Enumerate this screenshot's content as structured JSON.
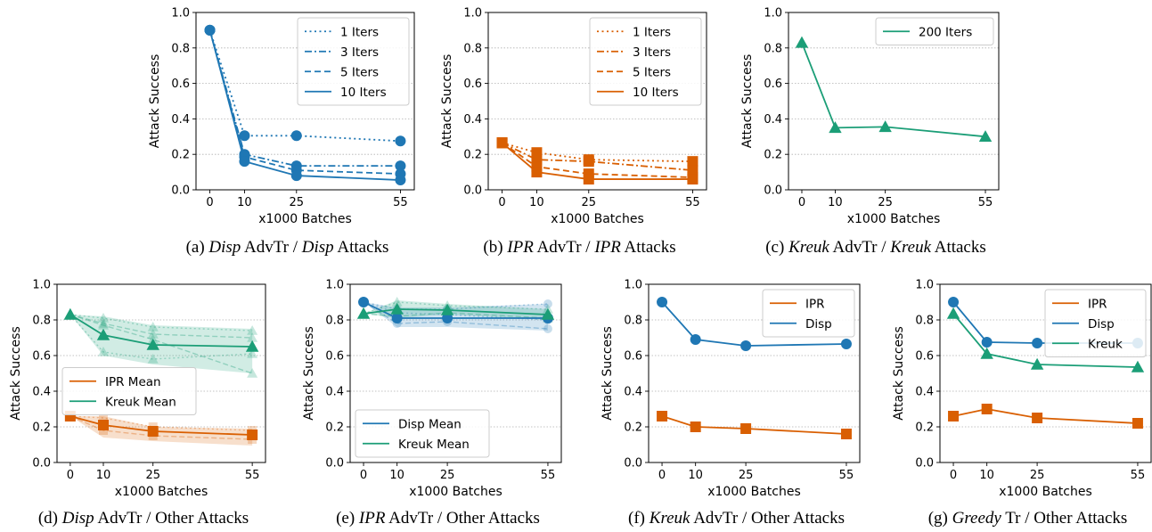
{
  "colors": {
    "Disp": "#1f77b4",
    "IPR": "#d95f02",
    "Kreuk": "#1b9e77"
  },
  "chart_data": [
    {
      "panel": "a",
      "type": "line",
      "caption": {
        "prefix": "(a) ",
        "parts": [
          {
            "t": "Disp",
            "i": true
          },
          {
            "t": " AdvTr / ",
            "i": false
          },
          {
            "t": "Disp",
            "i": true
          },
          {
            "t": " Attacks",
            "i": false
          }
        ]
      },
      "xlabel": "x1000 Batches",
      "ylabel": "Attack Success",
      "x": [
        0,
        10,
        25,
        55
      ],
      "xticks": [
        "0",
        "10",
        "25",
        "55"
      ],
      "ylim": [
        0,
        1
      ],
      "yticks": [
        "0.0",
        "0.2",
        "0.4",
        "0.6",
        "0.8",
        "1.0"
      ],
      "grid": true,
      "legend": "top-right",
      "series": [
        {
          "name": "1 Iters",
          "family": "Disp",
          "dash": "dotted",
          "marker": "circle",
          "values": [
            0.9,
            0.305,
            0.305,
            0.275
          ]
        },
        {
          "name": "3 Iters",
          "family": "Disp",
          "dash": "dashdot",
          "marker": "circle",
          "values": [
            0.9,
            0.2,
            0.135,
            0.135
          ]
        },
        {
          "name": "5 Iters",
          "family": "Disp",
          "dash": "dashed",
          "marker": "circle",
          "values": [
            0.9,
            0.185,
            0.11,
            0.09
          ]
        },
        {
          "name": "10 Iters",
          "family": "Disp",
          "dash": "solid",
          "marker": "circle",
          "values": [
            0.9,
            0.16,
            0.08,
            0.055
          ]
        }
      ]
    },
    {
      "panel": "b",
      "type": "line",
      "caption": {
        "prefix": "(b) ",
        "parts": [
          {
            "t": "IPR",
            "i": true
          },
          {
            "t": " AdvTr / ",
            "i": false
          },
          {
            "t": "IPR",
            "i": true
          },
          {
            "t": " Attacks",
            "i": false
          }
        ]
      },
      "xlabel": "x1000 Batches",
      "ylabel": "Attack Success",
      "x": [
        0,
        10,
        25,
        55
      ],
      "xticks": [
        "0",
        "10",
        "25",
        "55"
      ],
      "ylim": [
        0,
        1
      ],
      "yticks": [
        "0.0",
        "0.2",
        "0.4",
        "0.6",
        "0.8",
        "1.0"
      ],
      "grid": true,
      "legend": "top-right",
      "series": [
        {
          "name": "1 Iters",
          "family": "IPR",
          "dash": "dotted",
          "marker": "square",
          "values": [
            0.265,
            0.21,
            0.17,
            0.16
          ]
        },
        {
          "name": "3 Iters",
          "family": "IPR",
          "dash": "dashdot",
          "marker": "square",
          "values": [
            0.265,
            0.17,
            0.16,
            0.11
          ]
        },
        {
          "name": "5 Iters",
          "family": "IPR",
          "dash": "dashed",
          "marker": "square",
          "values": [
            0.265,
            0.13,
            0.09,
            0.07
          ]
        },
        {
          "name": "10 Iters",
          "family": "IPR",
          "dash": "solid",
          "marker": "square",
          "values": [
            0.265,
            0.1,
            0.06,
            0.06
          ]
        }
      ]
    },
    {
      "panel": "c",
      "type": "line",
      "caption": {
        "prefix": "(c) ",
        "parts": [
          {
            "t": "Kreuk",
            "i": true
          },
          {
            "t": " AdvTr / ",
            "i": false
          },
          {
            "t": "Kreuk",
            "i": true
          },
          {
            "t": " Attacks",
            "i": false
          }
        ]
      },
      "xlabel": "x1000 Batches",
      "ylabel": "Attack Success",
      "x": [
        0,
        10,
        25,
        55
      ],
      "xticks": [
        "0",
        "10",
        "25",
        "55"
      ],
      "ylim": [
        0,
        1
      ],
      "yticks": [
        "0.0",
        "0.2",
        "0.4",
        "0.6",
        "0.8",
        "1.0"
      ],
      "grid": true,
      "legend": "top-right",
      "series": [
        {
          "name": "200 Iters",
          "family": "Kreuk",
          "dash": "solid",
          "marker": "triangle",
          "values": [
            0.83,
            0.35,
            0.355,
            0.3
          ]
        }
      ]
    },
    {
      "panel": "d",
      "type": "area",
      "caption": {
        "prefix": "(d) ",
        "parts": [
          {
            "t": "Disp",
            "i": true
          },
          {
            "t": " AdvTr / Other Attacks",
            "i": false
          }
        ]
      },
      "xlabel": "x1000 Batches",
      "ylabel": "Attack Success",
      "x": [
        0,
        10,
        25,
        55
      ],
      "xticks": [
        "0",
        "10",
        "25",
        "55"
      ],
      "ylim": [
        0,
        1
      ],
      "yticks": [
        "0.0",
        "0.2",
        "0.4",
        "0.6",
        "0.8",
        "1.0"
      ],
      "grid": true,
      "legend": "center-left",
      "series": [
        {
          "name": "IPR Mean",
          "family": "IPR",
          "dash": "solid",
          "marker": "square",
          "values": [
            0.26,
            0.21,
            0.175,
            0.155
          ],
          "band": {
            "low": [
              0.26,
              0.14,
              0.12,
              0.095
            ],
            "high": [
              0.26,
              0.26,
              0.2,
              0.19
            ]
          },
          "faint": [
            [
              0.26,
              0.25,
              0.2,
              0.18
            ],
            [
              0.26,
              0.18,
              0.15,
              0.13
            ]
          ]
        },
        {
          "name": "Kreuk Mean",
          "family": "Kreuk",
          "dash": "solid",
          "marker": "triangle",
          "values": [
            0.83,
            0.715,
            0.66,
            0.65
          ],
          "band": {
            "low": [
              0.83,
              0.6,
              0.55,
              0.5
            ],
            "high": [
              0.83,
              0.82,
              0.77,
              0.75
            ]
          },
          "faint": [
            [
              0.83,
              0.81,
              0.76,
              0.74
            ],
            [
              0.83,
              0.78,
              0.72,
              0.7
            ],
            [
              0.83,
              0.62,
              0.58,
              0.61
            ],
            [
              0.83,
              0.77,
              0.69,
              0.5
            ]
          ]
        }
      ]
    },
    {
      "panel": "e",
      "type": "area",
      "caption": {
        "prefix": "(e) ",
        "parts": [
          {
            "t": "IPR",
            "i": true
          },
          {
            "t": " AdvTr / Other Attacks",
            "i": false
          }
        ]
      },
      "xlabel": "x1000 Batches",
      "ylabel": "Attack Success",
      "x": [
        0,
        10,
        25,
        55
      ],
      "xticks": [
        "0",
        "10",
        "25",
        "55"
      ],
      "ylim": [
        0,
        1
      ],
      "yticks": [
        "0.0",
        "0.2",
        "0.4",
        "0.6",
        "0.8",
        "1.0"
      ],
      "grid": true,
      "legend": "bottom-left",
      "series": [
        {
          "name": "Disp Mean",
          "family": "Disp",
          "dash": "solid",
          "marker": "circle",
          "values": [
            0.9,
            0.81,
            0.81,
            0.81
          ],
          "band": {
            "low": [
              0.9,
              0.76,
              0.76,
              0.74
            ],
            "high": [
              0.9,
              0.87,
              0.87,
              0.89
            ]
          },
          "faint": [
            [
              0.9,
              0.86,
              0.86,
              0.89
            ],
            [
              0.9,
              0.78,
              0.79,
              0.75
            ],
            [
              0.9,
              0.84,
              0.83,
              0.8
            ]
          ]
        },
        {
          "name": "Kreuk Mean",
          "family": "Kreuk",
          "dash": "solid",
          "marker": "triangle",
          "values": [
            0.835,
            0.86,
            0.855,
            0.83
          ],
          "band": {
            "low": [
              0.835,
              0.81,
              0.83,
              0.8
            ],
            "high": [
              0.835,
              0.91,
              0.89,
              0.86
            ]
          },
          "faint": [
            [
              0.835,
              0.9,
              0.88,
              0.86
            ],
            [
              0.835,
              0.82,
              0.84,
              0.81
            ]
          ]
        }
      ]
    },
    {
      "panel": "f",
      "type": "line",
      "caption": {
        "prefix": "(f) ",
        "parts": [
          {
            "t": "Kreuk",
            "i": true
          },
          {
            "t": " AdvTr / Other Attacks",
            "i": false
          }
        ]
      },
      "xlabel": "x1000 Batches",
      "ylabel": "Attack Success",
      "x": [
        0,
        10,
        25,
        55
      ],
      "xticks": [
        "0",
        "10",
        "25",
        "55"
      ],
      "ylim": [
        0,
        1
      ],
      "yticks": [
        "0.0",
        "0.2",
        "0.4",
        "0.6",
        "0.8",
        "1.0"
      ],
      "grid": true,
      "legend": "top-right",
      "series": [
        {
          "name": "IPR",
          "family": "IPR",
          "dash": "solid",
          "marker": "square",
          "values": [
            0.26,
            0.2,
            0.19,
            0.16
          ]
        },
        {
          "name": "Disp",
          "family": "Disp",
          "dash": "solid",
          "marker": "circle",
          "values": [
            0.9,
            0.69,
            0.655,
            0.665
          ]
        }
      ]
    },
    {
      "panel": "g",
      "type": "line",
      "caption": {
        "prefix": "(g) ",
        "parts": [
          {
            "t": "Greedy",
            "i": true
          },
          {
            "t": " Tr / Other Attacks",
            "i": false
          }
        ]
      },
      "xlabel": "x1000 Batches",
      "ylabel": "Attack Success",
      "x": [
        0,
        10,
        25,
        55
      ],
      "xticks": [
        "0",
        "10",
        "25",
        "55"
      ],
      "ylim": [
        0,
        1
      ],
      "yticks": [
        "0.0",
        "0.2",
        "0.4",
        "0.6",
        "0.8",
        "1.0"
      ],
      "grid": true,
      "legend": "top-right",
      "series": [
        {
          "name": "IPR",
          "family": "IPR",
          "dash": "solid",
          "marker": "square",
          "values": [
            0.26,
            0.3,
            0.25,
            0.22
          ]
        },
        {
          "name": "Disp",
          "family": "Disp",
          "dash": "solid",
          "marker": "circle",
          "values": [
            0.9,
            0.675,
            0.67,
            0.67
          ]
        },
        {
          "name": "Kreuk",
          "family": "Kreuk",
          "dash": "solid",
          "marker": "triangle",
          "values": [
            0.835,
            0.61,
            0.55,
            0.535
          ]
        }
      ]
    }
  ]
}
